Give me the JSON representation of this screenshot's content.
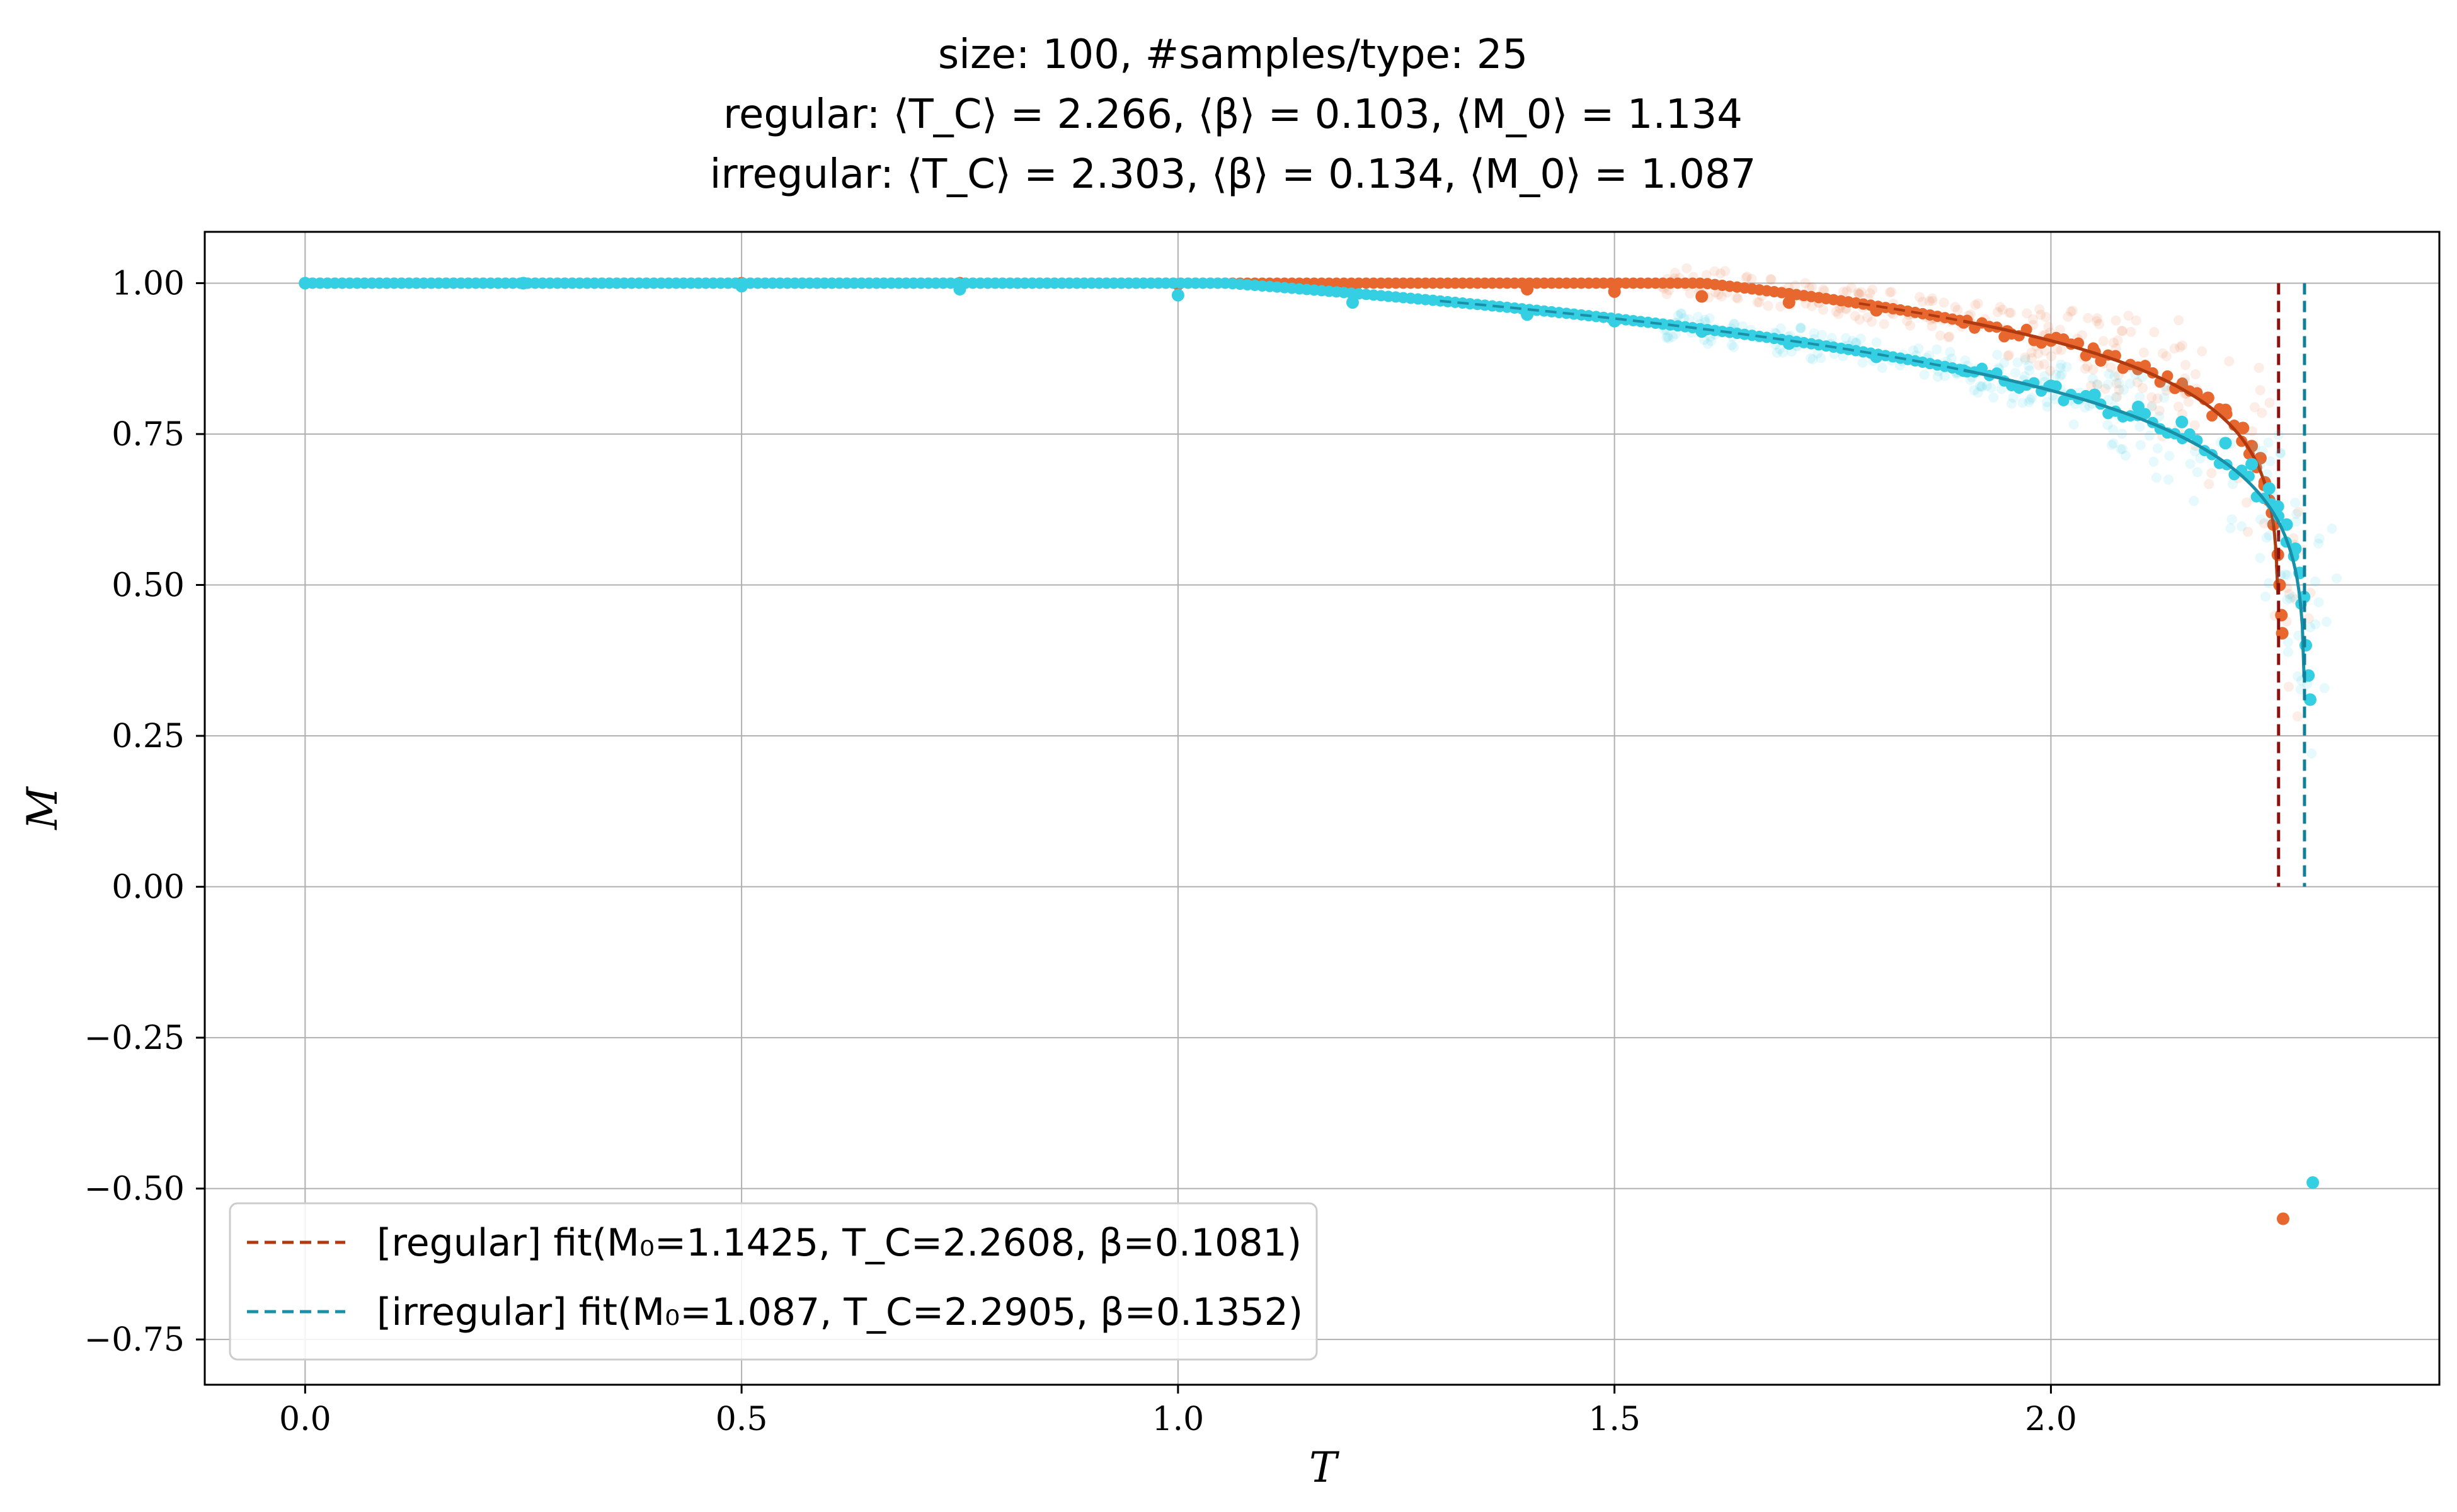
{
  "chart_data": {
    "type": "scatter",
    "title": [
      "size: 100, #samples/type: 25",
      "regular: ⟨T_C⟩ = 2.266, ⟨β⟩ = 0.103, ⟨M_0⟩ = 1.134",
      "irregular: ⟨T_C⟩ = 2.303, ⟨β⟩ = 0.134, ⟨M_0⟩ = 1.087"
    ],
    "xlabel": "T",
    "ylabel": "M",
    "xlim": [
      -0.115,
      2.445
    ],
    "ylim": [
      -0.825,
      1.085
    ],
    "xticks": [
      0.0,
      0.5,
      1.0,
      1.5,
      2.0
    ],
    "xtick_labels": [
      "0.0",
      "0.5",
      "1.0",
      "1.5",
      "2.0"
    ],
    "yticks": [
      1.0,
      0.75,
      0.5,
      0.25,
      0.0,
      -0.25,
      -0.5,
      -0.75
    ],
    "ytick_labels": [
      "1.00",
      "0.75",
      "0.50",
      "0.25",
      "0.00",
      "−0.25",
      "−0.50",
      "−0.75"
    ],
    "grid": true,
    "legend_position": "lower-left",
    "series": [
      {
        "name": "regular",
        "color": "#e8672e",
        "fit_color": "#b03a10",
        "vline_color": "#8b1010",
        "fit": {
          "M0": 1.1425,
          "Tc": 2.2608,
          "beta": 0.1081
        },
        "legend_label": "[regular] fit(M₀=1.1425, T_C=2.2608, β=0.1081)",
        "points": [
          [
            0.0,
            1.0
          ],
          [
            0.25,
            1.0
          ],
          [
            0.5,
            1.0
          ],
          [
            0.75,
            1.0
          ],
          [
            1.0,
            0.998
          ],
          [
            1.2,
            0.996
          ],
          [
            1.4,
            0.99
          ],
          [
            1.5,
            0.986
          ],
          [
            1.6,
            0.978
          ],
          [
            1.7,
            0.968
          ],
          [
            1.8,
            0.955
          ],
          [
            1.9,
            0.935
          ],
          [
            1.95,
            0.92
          ],
          [
            2.0,
            0.905
          ],
          [
            2.05,
            0.886
          ],
          [
            2.1,
            0.86
          ],
          [
            2.15,
            0.83
          ],
          [
            2.18,
            0.81
          ],
          [
            2.2,
            0.79
          ],
          [
            2.22,
            0.76
          ],
          [
            2.23,
            0.73
          ],
          [
            2.24,
            0.71
          ],
          [
            2.245,
            0.67
          ],
          [
            2.25,
            0.64
          ],
          [
            2.255,
            0.6
          ],
          [
            2.26,
            0.55
          ],
          [
            2.262,
            0.5
          ],
          [
            2.264,
            0.45
          ],
          [
            2.265,
            0.42
          ],
          [
            2.266,
            -0.55
          ]
        ]
      },
      {
        "name": "irregular",
        "color": "#35cfe3",
        "fit_color": "#1a8fa8",
        "vline_color": "#127f98",
        "fit": {
          "M0": 1.087,
          "Tc": 2.2905,
          "beta": 0.1352
        },
        "legend_label": "[irregular] fit(M₀=1.087, T_C=2.2905, β=0.1352)",
        "points": [
          [
            0.0,
            1.0
          ],
          [
            0.25,
            1.0
          ],
          [
            0.5,
            0.995
          ],
          [
            0.75,
            0.99
          ],
          [
            1.0,
            0.98
          ],
          [
            1.2,
            0.968
          ],
          [
            1.4,
            0.948
          ],
          [
            1.5,
            0.937
          ],
          [
            1.6,
            0.92
          ],
          [
            1.7,
            0.9
          ],
          [
            1.8,
            0.878
          ],
          [
            1.9,
            0.855
          ],
          [
            2.0,
            0.83
          ],
          [
            2.05,
            0.815
          ],
          [
            2.1,
            0.795
          ],
          [
            2.15,
            0.77
          ],
          [
            2.2,
            0.735
          ],
          [
            2.23,
            0.7
          ],
          [
            2.25,
            0.66
          ],
          [
            2.26,
            0.63
          ],
          [
            2.27,
            0.6
          ],
          [
            2.28,
            0.56
          ],
          [
            2.285,
            0.52
          ],
          [
            2.29,
            0.48
          ],
          [
            2.292,
            0.4
          ],
          [
            2.295,
            0.35
          ],
          [
            2.297,
            0.31
          ],
          [
            2.3,
            -0.49
          ]
        ]
      }
    ]
  }
}
